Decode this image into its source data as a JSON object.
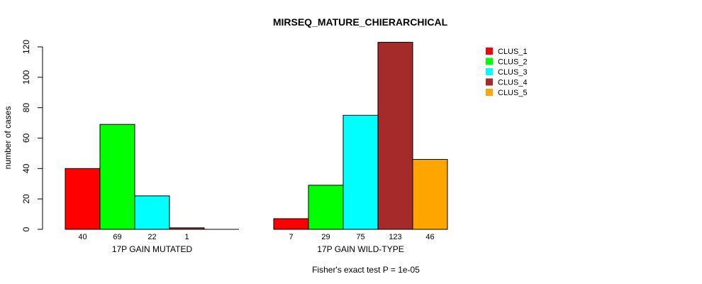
{
  "chart_data": {
    "type": "bar",
    "title": "MIRSEQ_MATURE_CHIERARCHICAL",
    "ylabel": "number of cases",
    "ylim": [
      0,
      120
    ],
    "yticks": [
      0,
      20,
      40,
      60,
      80,
      100,
      120
    ],
    "footnote": "Fisher's exact test P = 1e-05",
    "legend_position": "top-right",
    "series_names": [
      "CLUS_1",
      "CLUS_2",
      "CLUS_3",
      "CLUS_4",
      "CLUS_5"
    ],
    "colors": [
      "#FF0000",
      "#00FF00",
      "#00FFFF",
      "#A52A2A",
      "#FFA500"
    ],
    "groups": [
      {
        "label": "17P GAIN MUTATED",
        "values": [
          40,
          69,
          22,
          1,
          0
        ],
        "value_labels": [
          "40",
          "69",
          "22",
          "1",
          ""
        ]
      },
      {
        "label": "17P GAIN WILD-TYPE",
        "values": [
          7,
          29,
          75,
          123,
          46
        ],
        "value_labels": [
          "7",
          "29",
          "75",
          "123",
          "46"
        ]
      }
    ]
  }
}
